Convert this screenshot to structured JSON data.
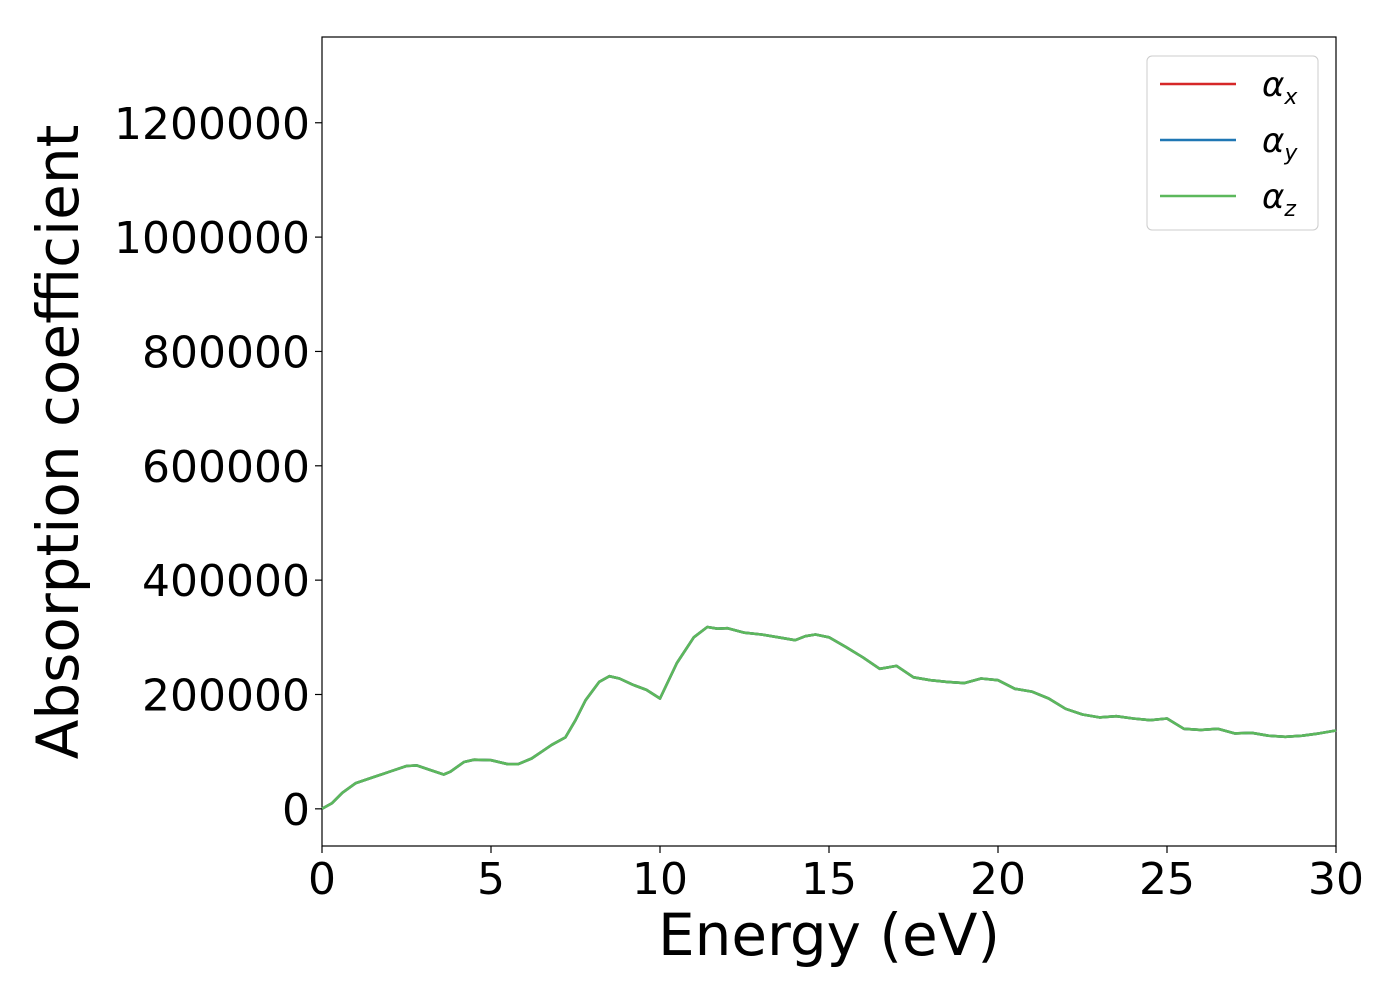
{
  "chart_data": {
    "type": "line",
    "xlabel": "Energy (eV)",
    "ylabel": "Absorption coefficient",
    "xlim": [
      0,
      30
    ],
    "ylim": [
      -65000,
      1350000
    ],
    "x_ticks": [
      0,
      5,
      10,
      15,
      20,
      25,
      30
    ],
    "x_tick_labels": [
      "0",
      "5",
      "10",
      "15",
      "20",
      "25",
      "30"
    ],
    "y_ticks": [
      0,
      200000,
      400000,
      600000,
      800000,
      1000000,
      1200000
    ],
    "y_tick_labels": [
      "0",
      "200000",
      "400000",
      "600000",
      "800000",
      "1000000",
      "1200000"
    ],
    "grid": false,
    "legend_position": "top-right",
    "x": [
      0,
      0.3,
      0.6,
      1.0,
      1.5,
      2.0,
      2.5,
      2.8,
      3.2,
      3.6,
      3.8,
      4.2,
      4.5,
      5.0,
      5.5,
      5.8,
      6.2,
      6.5,
      6.8,
      7.2,
      7.5,
      7.8,
      8.2,
      8.5,
      8.8,
      9.2,
      9.6,
      10.0,
      10.5,
      11.0,
      11.4,
      11.7,
      12.0,
      12.5,
      13.0,
      13.5,
      14.0,
      14.3,
      14.6,
      15.0,
      15.5,
      16.0,
      16.5,
      17.0,
      17.5,
      18.0,
      18.5,
      19.0,
      19.5,
      20.0,
      20.5,
      21.0,
      21.5,
      22.0,
      22.5,
      23.0,
      23.5,
      24.0,
      24.5,
      25.0,
      25.5,
      26.0,
      26.5,
      27.0,
      27.5,
      28.0,
      28.5,
      29.0,
      29.5,
      30.0
    ],
    "series": [
      {
        "name": "x",
        "color": "#d62728",
        "values": [
          0,
          10000,
          28000,
          45000,
          55000,
          65000,
          75000,
          76000,
          68000,
          60000,
          65000,
          82000,
          86000,
          85000,
          78000,
          78000,
          88000,
          100000,
          112000,
          125000,
          155000,
          190000,
          222000,
          232000,
          228000,
          217000,
          208000,
          193000,
          255000,
          300000,
          318000,
          315000,
          316000,
          308000,
          305000,
          300000,
          295000,
          302000,
          305000,
          300000,
          283000,
          265000,
          245000,
          250000,
          230000,
          225000,
          222000,
          220000,
          228000,
          225000,
          210000,
          205000,
          193000,
          175000,
          165000,
          160000,
          162000,
          158000,
          155000,
          158000,
          140000,
          138000,
          140000,
          132000,
          133000,
          128000,
          126000,
          128000,
          132000,
          137000
        ]
      },
      {
        "name": "y",
        "color": "#1f77b4",
        "values": [
          0,
          10000,
          28000,
          45000,
          55000,
          65000,
          75000,
          76000,
          68000,
          60000,
          65000,
          82000,
          86000,
          85000,
          78000,
          78000,
          88000,
          100000,
          112000,
          125000,
          155000,
          190000,
          222000,
          232000,
          228000,
          217000,
          208000,
          193000,
          255000,
          300000,
          318000,
          315000,
          316000,
          308000,
          305000,
          300000,
          295000,
          302000,
          305000,
          300000,
          283000,
          265000,
          245000,
          250000,
          230000,
          225000,
          222000,
          220000,
          228000,
          225000,
          210000,
          205000,
          193000,
          175000,
          165000,
          160000,
          162000,
          158000,
          155000,
          158000,
          140000,
          138000,
          140000,
          132000,
          133000,
          128000,
          126000,
          128000,
          132000,
          137000
        ]
      },
      {
        "name": "z",
        "color": "#5cb85c",
        "values": [
          0,
          10000,
          28000,
          45000,
          55000,
          65000,
          75000,
          76000,
          68000,
          60000,
          65000,
          82000,
          86000,
          85000,
          78000,
          78000,
          88000,
          100000,
          112000,
          125000,
          155000,
          190000,
          222000,
          232000,
          228000,
          217000,
          208000,
          193000,
          255000,
          300000,
          318000,
          315000,
          316000,
          308000,
          305000,
          300000,
          295000,
          302000,
          305000,
          300000,
          283000,
          265000,
          245000,
          250000,
          230000,
          225000,
          222000,
          220000,
          228000,
          225000,
          210000,
          205000,
          193000,
          175000,
          165000,
          160000,
          162000,
          158000,
          155000,
          158000,
          140000,
          138000,
          140000,
          132000,
          133000,
          128000,
          126000,
          128000,
          132000,
          137000
        ]
      }
    ],
    "legend": {
      "symbol": "α",
      "entries": [
        {
          "sub": "x",
          "color": "#d62728"
        },
        {
          "sub": "y",
          "color": "#1f77b4"
        },
        {
          "sub": "z",
          "color": "#5cb85c"
        }
      ]
    }
  }
}
